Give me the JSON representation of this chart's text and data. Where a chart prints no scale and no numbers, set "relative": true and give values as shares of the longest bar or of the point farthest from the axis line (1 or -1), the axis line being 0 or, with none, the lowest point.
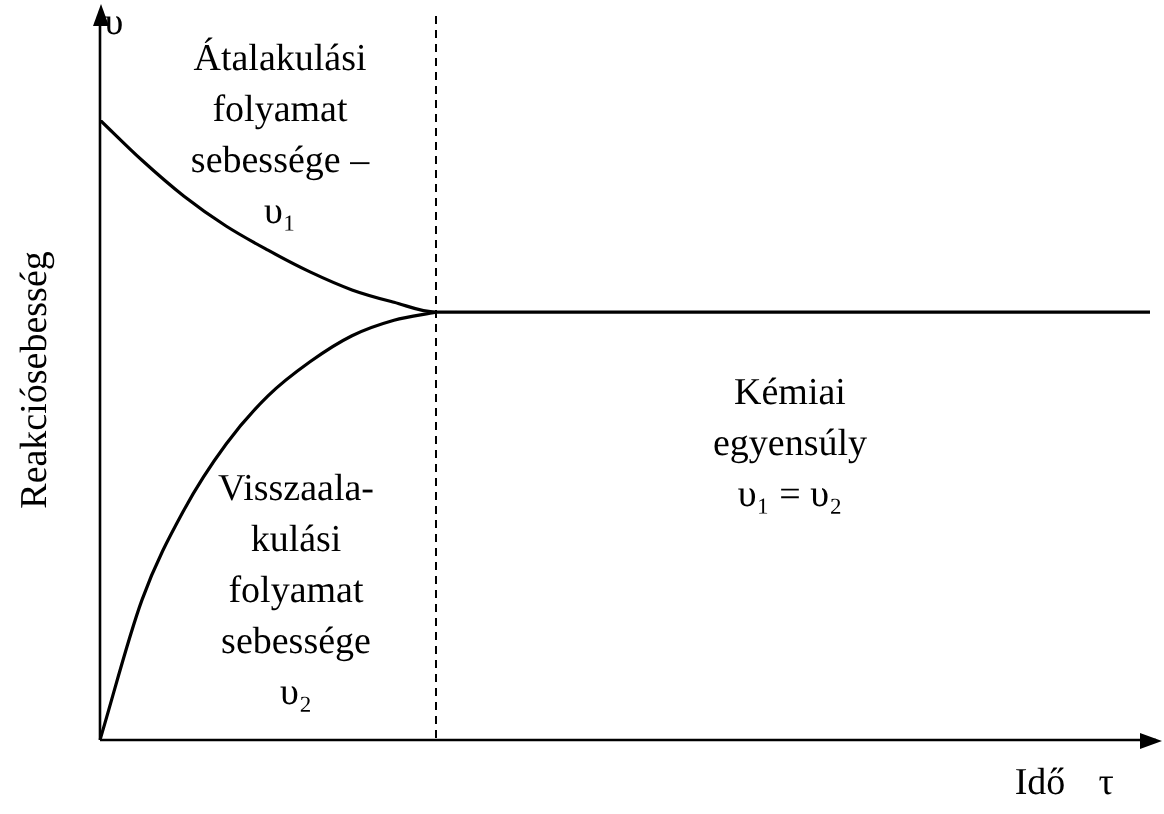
{
  "chart_data": {
    "type": "line",
    "relative": true,
    "categories": [
      null,
      null,
      null,
      null,
      null,
      null,
      null,
      null,
      null,
      null,
      null,
      null,
      null,
      null,
      null,
      null,
      null,
      null,
      null,
      null,
      null,
      null,
      null,
      null,
      null,
      null
    ],
    "series": [
      {
        "color": "#000000",
        "values": [
          1.0,
          0.935,
          0.877,
          0.829,
          0.79,
          0.755,
          0.726,
          0.706,
          0.69,
          0.69,
          0.69,
          0.69,
          0.69,
          0.69,
          0.69,
          0.69,
          0.69,
          0.69,
          0.69,
          0.69,
          0.69,
          0.69,
          0.69,
          0.69,
          0.69,
          0.69
        ]
      },
      {
        "color": "#000000",
        "values": [
          0,
          0.226,
          0.371,
          0.477,
          0.555,
          0.61,
          0.652,
          0.677,
          0.69,
          null,
          null,
          null,
          null,
          null,
          null,
          null,
          null,
          null,
          null,
          null,
          null,
          null,
          null,
          null,
          null,
          null
        ]
      }
    ],
    "xlabel": "Idő",
    "ylabel": "Reakciósebesség",
    "annotations": [
      "Átalakulási\nfolyamat\nsebessége –\nυ₁",
      "Kémiai\negyensúly\nυ₁ = υ₂",
      "Visszaala-\nkulási\nfolyamat\nsebessége\nυ₂",
      "υ",
      "τ"
    ],
    "legend": false,
    "marker": "none",
    "line_style": "solid"
  }
}
